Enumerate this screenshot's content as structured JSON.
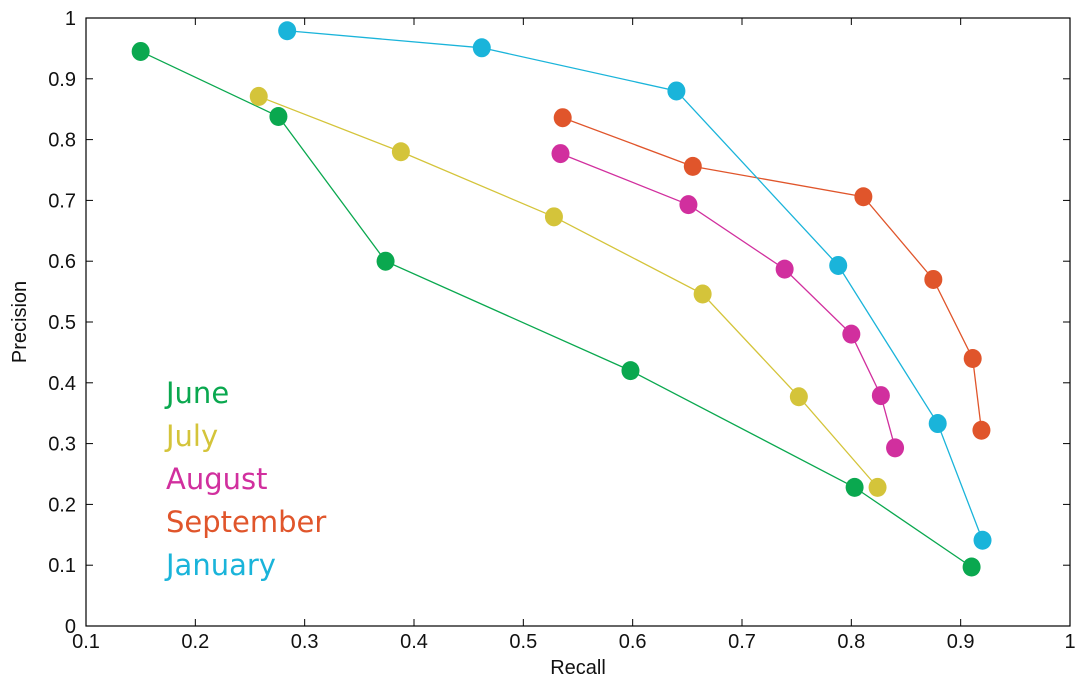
{
  "chart_data": {
    "type": "line",
    "title": "",
    "xlabel": "Recall",
    "ylabel": "Precision",
    "xlim": [
      0.1,
      1
    ],
    "ylim": [
      0,
      1
    ],
    "xticks": [
      "0.1",
      "0.2",
      "0.3",
      "0.4",
      "0.5",
      "0.6",
      "0.7",
      "0.8",
      "0.9",
      "1"
    ],
    "yticks": [
      "0",
      "0.1",
      "0.2",
      "0.3",
      "0.4",
      "0.5",
      "0.6",
      "0.7",
      "0.8",
      "0.9",
      "1"
    ],
    "grid": false,
    "legend_position": "bottom-left",
    "series": [
      {
        "name": "June",
        "color": "#0aa84f",
        "points": [
          [
            0.15,
            0.945
          ],
          [
            0.276,
            0.838
          ],
          [
            0.374,
            0.6
          ],
          [
            0.598,
            0.42
          ],
          [
            0.803,
            0.228
          ],
          [
            0.91,
            0.097
          ]
        ]
      },
      {
        "name": "July",
        "color": "#d4c43a",
        "points": [
          [
            0.258,
            0.871
          ],
          [
            0.388,
            0.78
          ],
          [
            0.528,
            0.673
          ],
          [
            0.664,
            0.546
          ],
          [
            0.752,
            0.377
          ],
          [
            0.824,
            0.228
          ]
        ]
      },
      {
        "name": "August",
        "color": "#d12f9e",
        "points": [
          [
            0.534,
            0.777
          ],
          [
            0.651,
            0.693
          ],
          [
            0.739,
            0.587
          ],
          [
            0.8,
            0.48
          ],
          [
            0.827,
            0.379
          ],
          [
            0.84,
            0.293
          ]
        ]
      },
      {
        "name": "September",
        "color": "#e0552b",
        "points": [
          [
            0.536,
            0.836
          ],
          [
            0.655,
            0.756
          ],
          [
            0.811,
            0.706
          ],
          [
            0.875,
            0.57
          ],
          [
            0.911,
            0.44
          ],
          [
            0.919,
            0.322
          ]
        ]
      },
      {
        "name": "January",
        "color": "#1ab4da",
        "points": [
          [
            0.284,
            0.979
          ],
          [
            0.462,
            0.951
          ],
          [
            0.64,
            0.88
          ],
          [
            0.788,
            0.593
          ],
          [
            0.879,
            0.333
          ],
          [
            0.92,
            0.141
          ]
        ]
      }
    ]
  }
}
